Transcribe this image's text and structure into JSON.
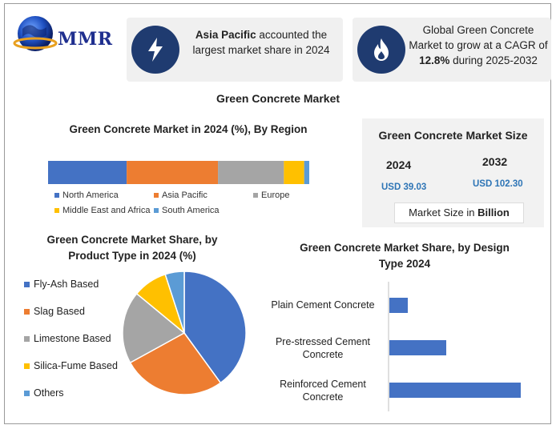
{
  "brand": {
    "logo_text": "MMR"
  },
  "callouts": [
    {
      "bold": "Asia Pacific",
      "text": " accounted the largest market share in 2024",
      "icon": "lightning-bolt-icon"
    },
    {
      "text": "Global Green Concrete Market to grow at a CAGR of ",
      "bold": "12.8%",
      "tail": " during 2025-2032",
      "icon": "flame-icon"
    }
  ],
  "main_title": "Green Concrete Market",
  "market_size": {
    "title": "Green Concrete Market Size",
    "year1": "2024",
    "value1": "USD 39.03",
    "year2": "2032",
    "value2": "USD 102.30",
    "unit_prefix": "Market Size in ",
    "unit_bold": "Billion"
  },
  "colors": {
    "blue": "#4472c4",
    "orange": "#ed7d31",
    "gray": "#a5a5a5",
    "yellow": "#ffc000",
    "lightblue": "#5b9bd5",
    "navy": "#1f3b70"
  },
  "chart_data": [
    {
      "type": "bar",
      "orientation": "horizontal-stacked",
      "title": "Green Concrete Market in 2024 (%), By Region",
      "categories": [
        "North America",
        "Asia Pacific",
        "Europe",
        "Middle East and Africa",
        "South America"
      ],
      "values": [
        31,
        36,
        26,
        8,
        2
      ],
      "colors": [
        "#4472c4",
        "#ed7d31",
        "#a5a5a5",
        "#ffc000",
        "#5b9bd5"
      ],
      "legend": "bottom"
    },
    {
      "type": "pie",
      "title": "Green Concrete Market Share, by Product Type in 2024 (%)",
      "categories": [
        "Fly-Ash Based",
        "Slag Based",
        "Limestone Based",
        "Silica-Fume Based",
        "Others"
      ],
      "values": [
        40,
        27,
        19,
        9,
        5
      ],
      "colors": [
        "#4472c4",
        "#ed7d31",
        "#a5a5a5",
        "#ffc000",
        "#5b9bd5"
      ],
      "legend": "left"
    },
    {
      "type": "bar",
      "orientation": "horizontal",
      "title": "Green Concrete Market Share, by Design Type 2024",
      "categories": [
        "Plain Cement Concrete",
        "Pre-stressed Cement Concrete",
        "Reinforced Cement Concrete"
      ],
      "values": [
        14,
        43,
        100
      ],
      "color": "#4472c4"
    }
  ]
}
